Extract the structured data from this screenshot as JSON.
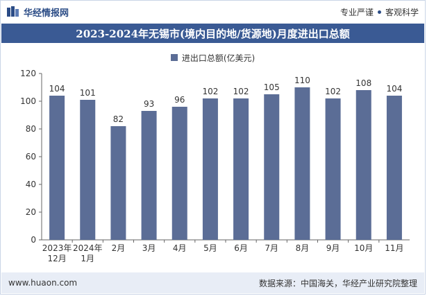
{
  "header": {
    "brand_name": "华经情报网",
    "tagline_left": "专业严谨",
    "tagline_right": "客观科学"
  },
  "colors": {
    "title_bg": "#3a5a94",
    "bar": "#5b6d96",
    "footer_bg": "#e8edf6"
  },
  "chart_data": {
    "type": "bar",
    "title": "2023-2024年无锡市(境内目的地/货源地)月度进出口总额",
    "categories": [
      "2023年\n12月",
      "2024年\n1月",
      "2月",
      "3月",
      "4月",
      "5月",
      "6月",
      "7月",
      "8月",
      "9月",
      "10月",
      "11月"
    ],
    "series": [
      {
        "name": "进出口总额(亿美元)",
        "values": [
          104,
          101,
          82,
          93,
          96,
          102,
          102,
          105,
          110,
          102,
          108,
          104
        ]
      }
    ],
    "ylim": [
      0,
      120
    ],
    "yticks": [
      0,
      20,
      40,
      60,
      80,
      100,
      120
    ],
    "grid": false,
    "legend": "top-center",
    "data_labels": true
  },
  "footer": {
    "website": "www.huaon.com",
    "source": "数据来源：中国海关，华经产业研究院整理"
  }
}
